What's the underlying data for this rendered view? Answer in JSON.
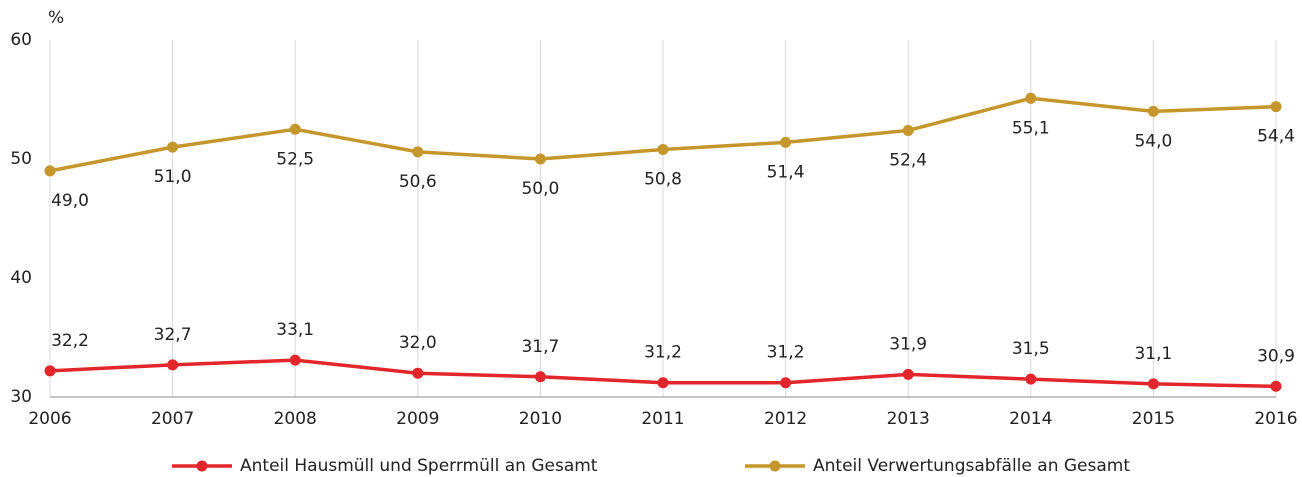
{
  "chart_data": {
    "type": "line",
    "y_unit": "%",
    "categories": [
      "2006",
      "2007",
      "2008",
      "2009",
      "2010",
      "2011",
      "2012",
      "2013",
      "2014",
      "2015",
      "2016"
    ],
    "series": [
      {
        "name": "Anteil Hausmüll und Sperrmüll an Gesamt",
        "color": "#e3262b",
        "label_side": "above",
        "values": [
          32.2,
          32.7,
          33.1,
          32.0,
          31.7,
          31.2,
          31.2,
          31.9,
          31.5,
          31.1,
          30.9
        ],
        "value_labels": [
          "32,2",
          "32,7",
          "33,1",
          "32,0",
          "31,7",
          "31,2",
          "31,2",
          "31,9",
          "31,5",
          "31,1",
          "30,9"
        ]
      },
      {
        "name": "Anteil Verwertungsabfälle an Gesamt",
        "color": "#c4962c",
        "label_side": "below",
        "values": [
          49.0,
          51.0,
          52.5,
          50.6,
          50.0,
          50.8,
          51.4,
          52.4,
          55.1,
          54.0,
          54.4
        ],
        "value_labels": [
          "49,0",
          "51,0",
          "52,5",
          "50,6",
          "50,0",
          "50,8",
          "51,4",
          "52,4",
          "55,1",
          "54,0",
          "54,4"
        ]
      }
    ],
    "ylim": [
      30,
      60
    ],
    "yticks": [
      30,
      40,
      50,
      60
    ],
    "grid": "x"
  }
}
